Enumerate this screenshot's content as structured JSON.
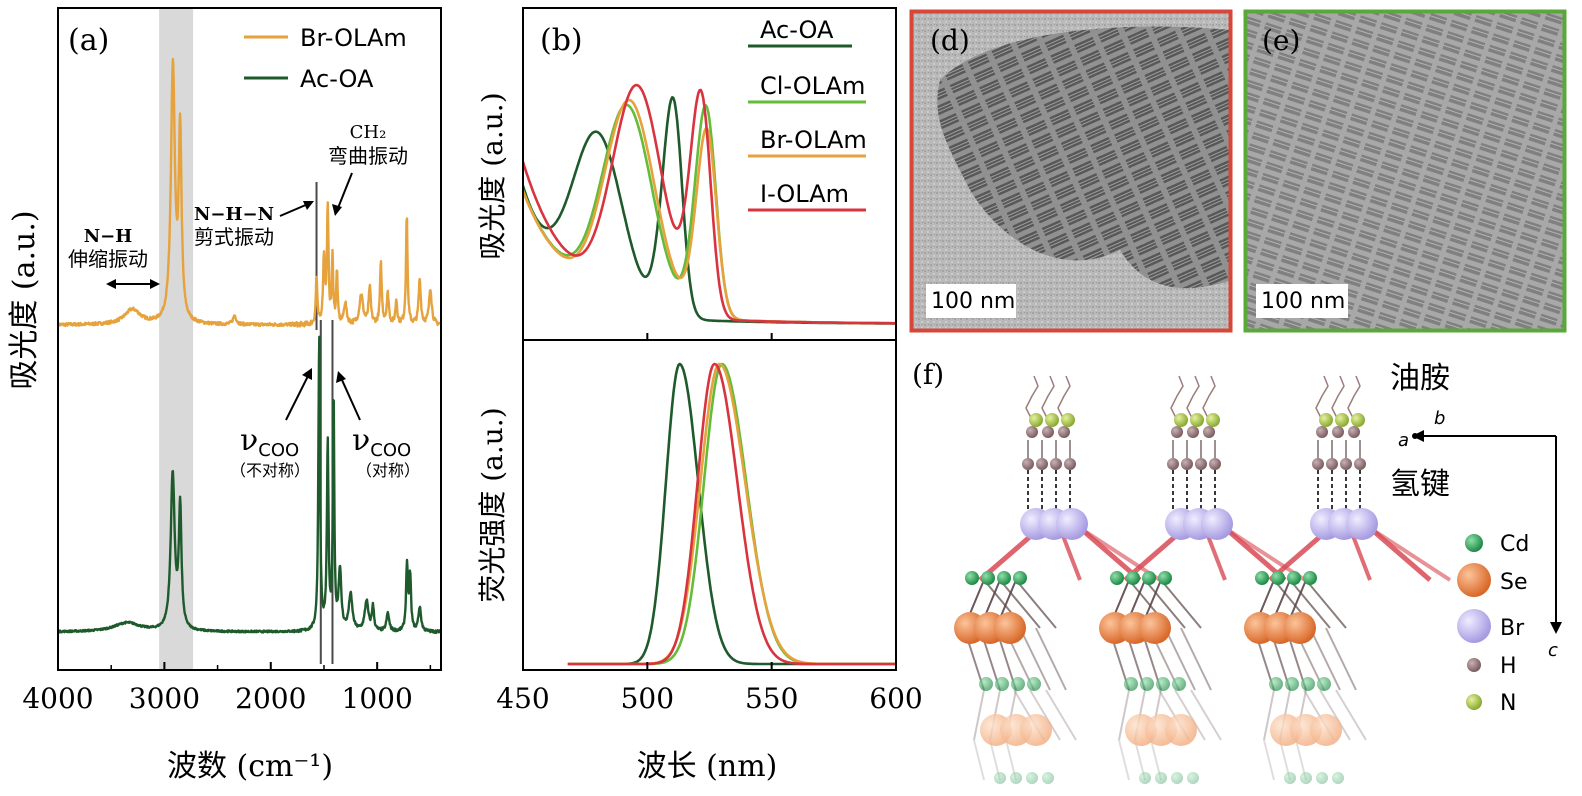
{
  "colors": {
    "br_olam": "#e6a23c",
    "ac_oa": "#1e5a2c",
    "cl_olam": "#66bb3a",
    "i_olam": "#d8343f",
    "frame_d": "#d6473a",
    "frame_e": "#5aa83a",
    "shade": "#d9d9d9",
    "cd": "#2ea25a",
    "se": "#ec8c4a",
    "br": "#bfb5ec",
    "h": "#8a6e70",
    "n": "#a9c64a",
    "bond_red": "#d94b55"
  },
  "chart_data": [
    {
      "panel": "(a)",
      "type": "line",
      "xlabel": "波数 (cm⁻¹)",
      "ylabel": "吸光度 (a.u.)",
      "xlim": [
        4000,
        400
      ],
      "xticks": [
        4000,
        3000,
        2000,
        1000
      ],
      "shaded_band": [
        3050,
        2730
      ],
      "marker_lines": [
        1570,
        1530,
        1420
      ],
      "legend": [
        "Br-OLAm",
        "Ac-OA"
      ],
      "series": [
        {
          "name": "Br-OLAm",
          "color_key": "br_olam",
          "baseline": 0.0,
          "noise": 0.01,
          "peaks": [
            [
              2920,
              0.85,
              22
            ],
            [
              2852,
              0.62,
              16
            ],
            [
              3300,
              0.05,
              90
            ],
            [
              2340,
              0.03,
              18
            ],
            [
              1570,
              0.16,
              8
            ],
            [
              1500,
              0.22,
              10
            ],
            [
              1465,
              0.38,
              9
            ],
            [
              1420,
              0.22,
              8
            ],
            [
              1378,
              0.17,
              8
            ],
            [
              1300,
              0.07,
              15
            ],
            [
              1150,
              0.1,
              20
            ],
            [
              1070,
              0.12,
              12
            ],
            [
              965,
              0.2,
              10
            ],
            [
              900,
              0.1,
              12
            ],
            [
              820,
              0.08,
              10
            ],
            [
              722,
              0.36,
              9
            ],
            [
              600,
              0.15,
              12
            ],
            [
              500,
              0.12,
              15
            ]
          ]
        },
        {
          "name": "Ac-OA",
          "color_key": "ac_oa",
          "baseline": 0.0,
          "noise": 0.006,
          "peaks": [
            [
              2922,
              0.52,
              22
            ],
            [
              2852,
              0.4,
              15
            ],
            [
              3350,
              0.03,
              150
            ],
            [
              1545,
              0.98,
              9
            ],
            [
              1465,
              0.62,
              9
            ],
            [
              1410,
              0.78,
              8
            ],
            [
              1350,
              0.2,
              15
            ],
            [
              1250,
              0.12,
              20
            ],
            [
              1100,
              0.1,
              20
            ],
            [
              1040,
              0.08,
              12
            ],
            [
              900,
              0.06,
              15
            ],
            [
              720,
              0.22,
              10
            ],
            [
              690,
              0.18,
              10
            ],
            [
              600,
              0.08,
              15
            ]
          ]
        }
      ],
      "annotations": [
        {
          "id": "nh",
          "lines": [
            "N−H",
            "伸缩振动"
          ]
        },
        {
          "id": "nhn",
          "lines": [
            "N−H−N",
            "剪式振动"
          ]
        },
        {
          "id": "ch2",
          "lines": [
            "CH₂",
            "弯曲振动"
          ]
        },
        {
          "id": "coo_asym",
          "symbol": "ν",
          "sub": "COO",
          "note": "（不对称）"
        },
        {
          "id": "coo_sym",
          "symbol": "ν",
          "sub": "COO",
          "note": "（对称）"
        }
      ]
    },
    {
      "panel": "(b)",
      "type": "line",
      "xlabel": "波长 (nm)",
      "xlim": [
        450,
        600
      ],
      "xticks": [
        450,
        500,
        550,
        600
      ],
      "legend": [
        "Ac-OA",
        "Cl-OLAm",
        "Br-OLAm",
        "I-OLAm"
      ],
      "top": {
        "ylabel": "吸光度 (a.u.)",
        "series": [
          {
            "name": "Ac-OA",
            "color_key": "ac_oa",
            "excitons": [
              [
                480,
                0.56,
                10
              ],
              [
                512,
                0.95,
                5
              ]
            ],
            "edge": 514,
            "edge_w": 2.5,
            "bg": 0.38,
            "bg_decay": 14
          },
          {
            "name": "Cl-OLAm",
            "color_key": "cl_olam",
            "excitons": [
              [
                492,
                0.66,
                10
              ],
              [
                525,
                0.9,
                5
              ]
            ],
            "edge": 528,
            "edge_w": 3.0,
            "bg": 0.34,
            "bg_decay": 18
          },
          {
            "name": "Br-OLAm",
            "color_key": "br_olam",
            "excitons": [
              [
                493,
                0.68,
                10
              ],
              [
                526,
                0.93,
                5
              ]
            ],
            "edge": 527,
            "edge_w": 3.0,
            "bg": 0.34,
            "bg_decay": 18
          },
          {
            "name": "I-OLAm",
            "color_key": "i_olam",
            "excitons": [
              [
                496,
                0.73,
                10
              ],
              [
                523,
                0.92,
                5
              ]
            ],
            "edge": 526,
            "edge_w": 2.8,
            "bg": 0.44,
            "bg_decay": 18
          }
        ]
      },
      "bottom": {
        "ylabel": "荧光强度 (a.u.)",
        "series": [
          {
            "name": "Ac-OA",
            "color_key": "ac_oa",
            "center": 513,
            "sigma": 6.5
          },
          {
            "name": "Cl-OLAm",
            "color_key": "cl_olam",
            "center": 530,
            "sigma": 8.5
          },
          {
            "name": "Br-OLAm",
            "color_key": "br_olam",
            "center": 529,
            "sigma": 9.0
          },
          {
            "name": "I-OLAm",
            "color_key": "i_olam",
            "center": 527,
            "sigma": 8.0
          }
        ]
      }
    }
  ],
  "panel_d": {
    "label": "(d)",
    "scale": "100 nm"
  },
  "panel_e": {
    "label": "(e)",
    "scale": "100 nm"
  },
  "panel_f": {
    "label": "(f)",
    "top_label": "油胺",
    "bond_label": "氢键",
    "axes": {
      "b": "b",
      "a": "a",
      "c": "c"
    },
    "legend": [
      "Cd",
      "Se",
      "Br",
      "H",
      "N"
    ]
  }
}
